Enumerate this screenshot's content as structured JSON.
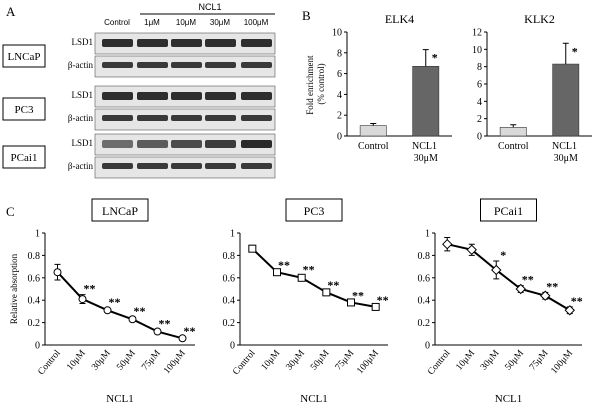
{
  "panel_labels": [
    "A",
    "B",
    "C"
  ],
  "blot": {
    "group": "NCL1",
    "lanes": [
      "Control",
      "1μM",
      "10μM",
      "30μM",
      "100μM"
    ],
    "rows": [
      {
        "cell_line": "LNCaP",
        "bands": [
          "LSD1",
          "β-actin"
        ]
      },
      {
        "cell_line": "PC3",
        "bands": [
          "LSD1",
          "β-actin"
        ]
      },
      {
        "cell_line": "PCai1",
        "bands": [
          "LSD1",
          "β-actin"
        ]
      }
    ]
  },
  "chart_data": [
    {
      "type": "bar",
      "title": "ELK4",
      "ylabel": "Fold enrichment (% control)",
      "categories": [
        "Control",
        "NCL1 30μM"
      ],
      "values": [
        1.0,
        6.7
      ],
      "errors": [
        0.2,
        1.6
      ],
      "colors": [
        "#d9d9d9",
        "#666666"
      ],
      "annotations": [
        null,
        "*"
      ],
      "ylim": [
        0,
        10
      ],
      "yticks": [
        0,
        2,
        4,
        6,
        8,
        10
      ],
      "grid": false
    },
    {
      "type": "bar",
      "title": "KLK2",
      "categories": [
        "Control",
        "NCL1 30μM"
      ],
      "values": [
        1.0,
        8.3
      ],
      "errors": [
        0.3,
        2.4
      ],
      "colors": [
        "#d9d9d9",
        "#666666"
      ],
      "annotations": [
        null,
        "*"
      ],
      "ylim": [
        0,
        12
      ],
      "yticks": [
        0,
        2,
        4,
        6,
        8,
        10,
        12
      ],
      "grid": false
    },
    {
      "type": "line",
      "title": "LNCaP",
      "ylabel": "Relative absorption",
      "xlabel": "NCL1",
      "categories": [
        "Control",
        "10μM",
        "30μM",
        "50μM",
        "75μM",
        "100μM"
      ],
      "series": [
        {
          "color": "#000000",
          "marker": "circle",
          "values": [
            0.65,
            0.41,
            0.31,
            0.23,
            0.12,
            0.06
          ],
          "errors": [
            0.07,
            0.04,
            0.02,
            0.02,
            0.02,
            0.01
          ],
          "annotations": [
            null,
            "**",
            "**",
            "**",
            "**",
            "**"
          ]
        }
      ],
      "ylim": [
        0,
        1
      ],
      "yticks": [
        0,
        0.2,
        0.4,
        0.6,
        0.8,
        1
      ],
      "grid": false
    },
    {
      "type": "line",
      "title": "PC3",
      "xlabel": "NCL1",
      "categories": [
        "Control",
        "10μM",
        "30μM",
        "50μM",
        "75μM",
        "100μM"
      ],
      "series": [
        {
          "color": "#000000",
          "marker": "square",
          "values": [
            0.86,
            0.65,
            0.6,
            0.47,
            0.38,
            0.34
          ],
          "errors": [
            0.03,
            0.01,
            0.02,
            0.01,
            0.01,
            0.01
          ],
          "annotations": [
            null,
            "**",
            "**",
            "**",
            "**",
            "**"
          ]
        }
      ],
      "ylim": [
        0,
        1
      ],
      "yticks": [
        0,
        0.2,
        0.4,
        0.6,
        0.8,
        1
      ],
      "grid": false
    },
    {
      "type": "line",
      "title": "PCai1",
      "xlabel": "NCL1",
      "categories": [
        "Control",
        "10μM",
        "30μM",
        "50μM",
        "75μM",
        "100μM"
      ],
      "series": [
        {
          "color": "#000000",
          "marker": "diamond",
          "values": [
            0.9,
            0.85,
            0.67,
            0.5,
            0.44,
            0.31
          ],
          "errors": [
            0.06,
            0.05,
            0.08,
            0.03,
            0.03,
            0.03
          ],
          "annotations": [
            null,
            null,
            "*",
            "**",
            "**",
            "**"
          ]
        }
      ],
      "ylim": [
        0,
        1
      ],
      "yticks": [
        0,
        0.2,
        0.4,
        0.6,
        0.8,
        1
      ],
      "grid": false
    }
  ]
}
